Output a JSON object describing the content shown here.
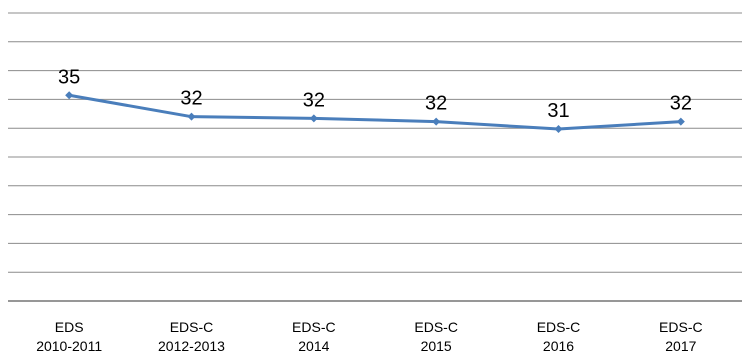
{
  "chart_data": {
    "type": "line",
    "categories": [
      [
        "EDS",
        "2010-2011"
      ],
      [
        "EDS-C",
        "2012-2013"
      ],
      [
        "EDS-C",
        "2014"
      ],
      [
        "EDS-C",
        "2015"
      ],
      [
        "EDS-C",
        "2016"
      ],
      [
        "EDS-C",
        "2017"
      ]
    ],
    "series": [
      {
        "values": [
          35.0,
          32.4,
          32.2,
          31.8,
          30.9,
          31.8
        ],
        "labels": [
          "35",
          "32",
          "32",
          "32",
          "31",
          "32"
        ],
        "color": "#4a7ebb"
      }
    ],
    "ylim": [
      10,
      45
    ],
    "grid": true,
    "legend": "none"
  }
}
